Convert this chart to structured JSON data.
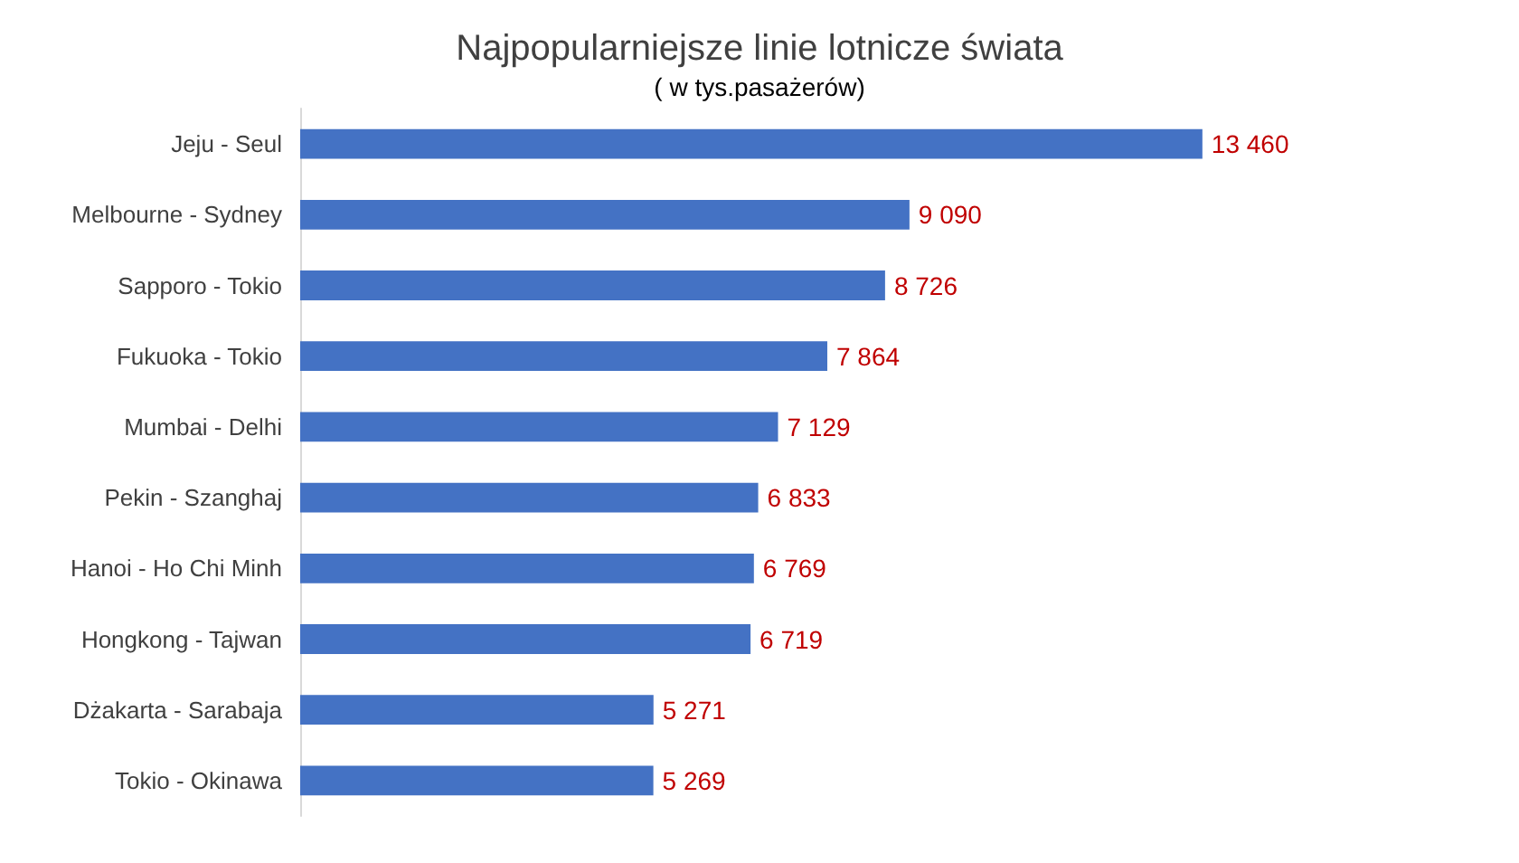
{
  "chart_data": {
    "type": "bar",
    "orientation": "horizontal",
    "title": "Najpopularniejsze linie lotnicze świata",
    "subtitle": "( w tys.pasażerów)",
    "categories": [
      "Jeju - Seul",
      "Melbourne - Sydney",
      "Sapporo - Tokio",
      "Fukuoka - Tokio",
      "Mumbai - Delhi",
      "Pekin - Szanghaj",
      "Hanoi - Ho Chi Minh",
      "Hongkong - Tajwan",
      "Dżakarta - Sarabaja",
      "Tokio - Okinawa"
    ],
    "values": [
      13460,
      9090,
      8726,
      7864,
      7129,
      6833,
      6769,
      6719,
      5271,
      5269
    ],
    "value_labels": [
      "13 460",
      "9 090",
      "8 726",
      "7 864",
      "7 129",
      "6 833",
      "6 769",
      "6 719",
      "5 271",
      "5 269"
    ],
    "color": "#4472c4"
  }
}
